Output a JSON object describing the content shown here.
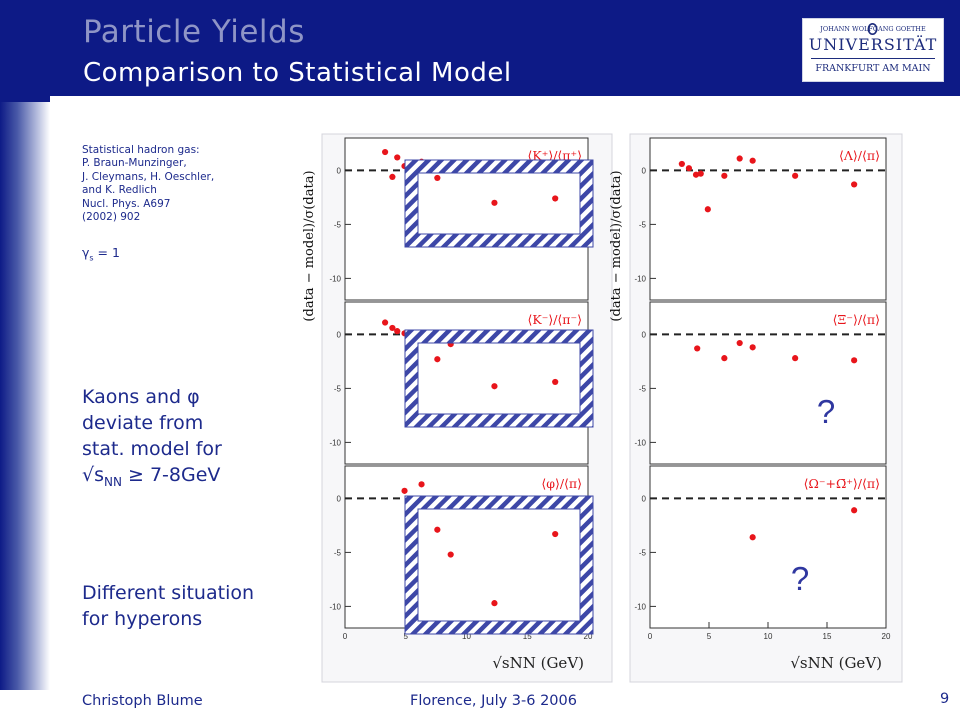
{
  "slide": {
    "title": "Particle Yields",
    "subtitle": "Comparison to Statistical Model",
    "page_number": "9",
    "footer_author": "Christoph Blume",
    "footer_event": "Florence, July 3-6 2006"
  },
  "logo": {
    "line1": "JOHANN WOLFGANG GOETHE",
    "line2": "UNIVERSITÄT",
    "line3": "FRANKFURT AM MAIN"
  },
  "reference": {
    "lines": [
      "Statistical hadron gas:",
      "P. Braun-Munzinger,",
      "J. Cleymans, H. Oeschler,",
      "and K. Redlich",
      "Nucl. Phys. A697",
      "(2002) 902"
    ],
    "gamma_symbol": "γ",
    "gamma_sub": "s",
    "gamma_value": " = 1"
  },
  "notes": {
    "kaons_line1": "Kaons and φ",
    "kaons_line2": "deviate from",
    "kaons_line3": "stat. model for",
    "kaons_sqrt": "√s",
    "kaons_sub": "NN",
    "kaons_tail": " ≥ 7-8GeV",
    "hyperons_line1": "Different situation",
    "hyperons_line2": "for hyperons"
  },
  "chart_data": [
    {
      "type": "scatter",
      "ylabel": "(data − model)/σ(data)",
      "xlabel": "√sNN (GeV)",
      "xlim": [
        0,
        20
      ],
      "ylim": [
        -12,
        3
      ],
      "xticks": [
        0,
        5,
        10,
        15,
        20
      ],
      "yticks": [
        0,
        -5,
        -10
      ],
      "reference_line": 0,
      "marker_color": "#e8151b",
      "panels": [
        {
          "label": "⟨K⁺⟩/⟨π⁺⟩",
          "x": [
            3.3,
            3.9,
            4.3,
            4.9,
            6.3,
            7.6,
            8.7,
            12.3,
            17.3
          ],
          "y": [
            1.7,
            -0.6,
            1.2,
            0.4,
            0.8,
            -0.7,
            0.6,
            -3.0,
            -2.6
          ]
        },
        {
          "label": "⟨K⁻⟩/⟨π⁻⟩",
          "x": [
            3.3,
            3.9,
            4.3,
            4.9,
            6.3,
            7.6,
            8.7,
            12.3,
            17.3
          ],
          "y": [
            1.1,
            0.6,
            0.3,
            0.1,
            -0.4,
            -2.3,
            -0.9,
            -4.8,
            -4.4
          ]
        },
        {
          "label": "⟨φ⟩/⟨π⟩",
          "x": [
            4.9,
            6.3,
            7.6,
            8.7,
            12.3,
            17.3
          ],
          "y": [
            0.7,
            1.3,
            -2.9,
            -5.2,
            -9.7,
            -3.3
          ]
        }
      ]
    },
    {
      "type": "scatter",
      "ylabel": "(data − model)/σ(data)",
      "xlabel": "√sNN (GeV)",
      "xlim": [
        0,
        20
      ],
      "ylim": [
        -12,
        3
      ],
      "xticks": [
        0,
        5,
        10,
        15,
        20
      ],
      "yticks": [
        0,
        -5,
        -10
      ],
      "reference_line": 0,
      "marker_color": "#e8151b",
      "panels": [
        {
          "label": "⟨Λ⟩/⟨π⟩",
          "x": [
            2.7,
            3.3,
            3.9,
            4.3,
            4.9,
            6.3,
            7.6,
            8.7,
            12.3,
            17.3
          ],
          "y": [
            0.6,
            0.2,
            -0.4,
            -0.3,
            -3.6,
            -0.5,
            1.1,
            0.9,
            -0.5,
            -1.3
          ]
        },
        {
          "label": "⟨Ξ⁻⟩/⟨π⟩",
          "x": [
            4.0,
            6.3,
            7.6,
            8.7,
            12.3,
            17.3
          ],
          "y": [
            -1.3,
            -2.2,
            -0.8,
            -1.2,
            -2.2,
            -2.4
          ],
          "annotation": "?"
        },
        {
          "label": "⟨Ω⁻+Ω̄⁺⟩/⟨π⟩",
          "x": [
            8.7,
            17.3
          ],
          "y": [
            -3.6,
            -1.1
          ],
          "annotation": "?"
        }
      ]
    }
  ]
}
